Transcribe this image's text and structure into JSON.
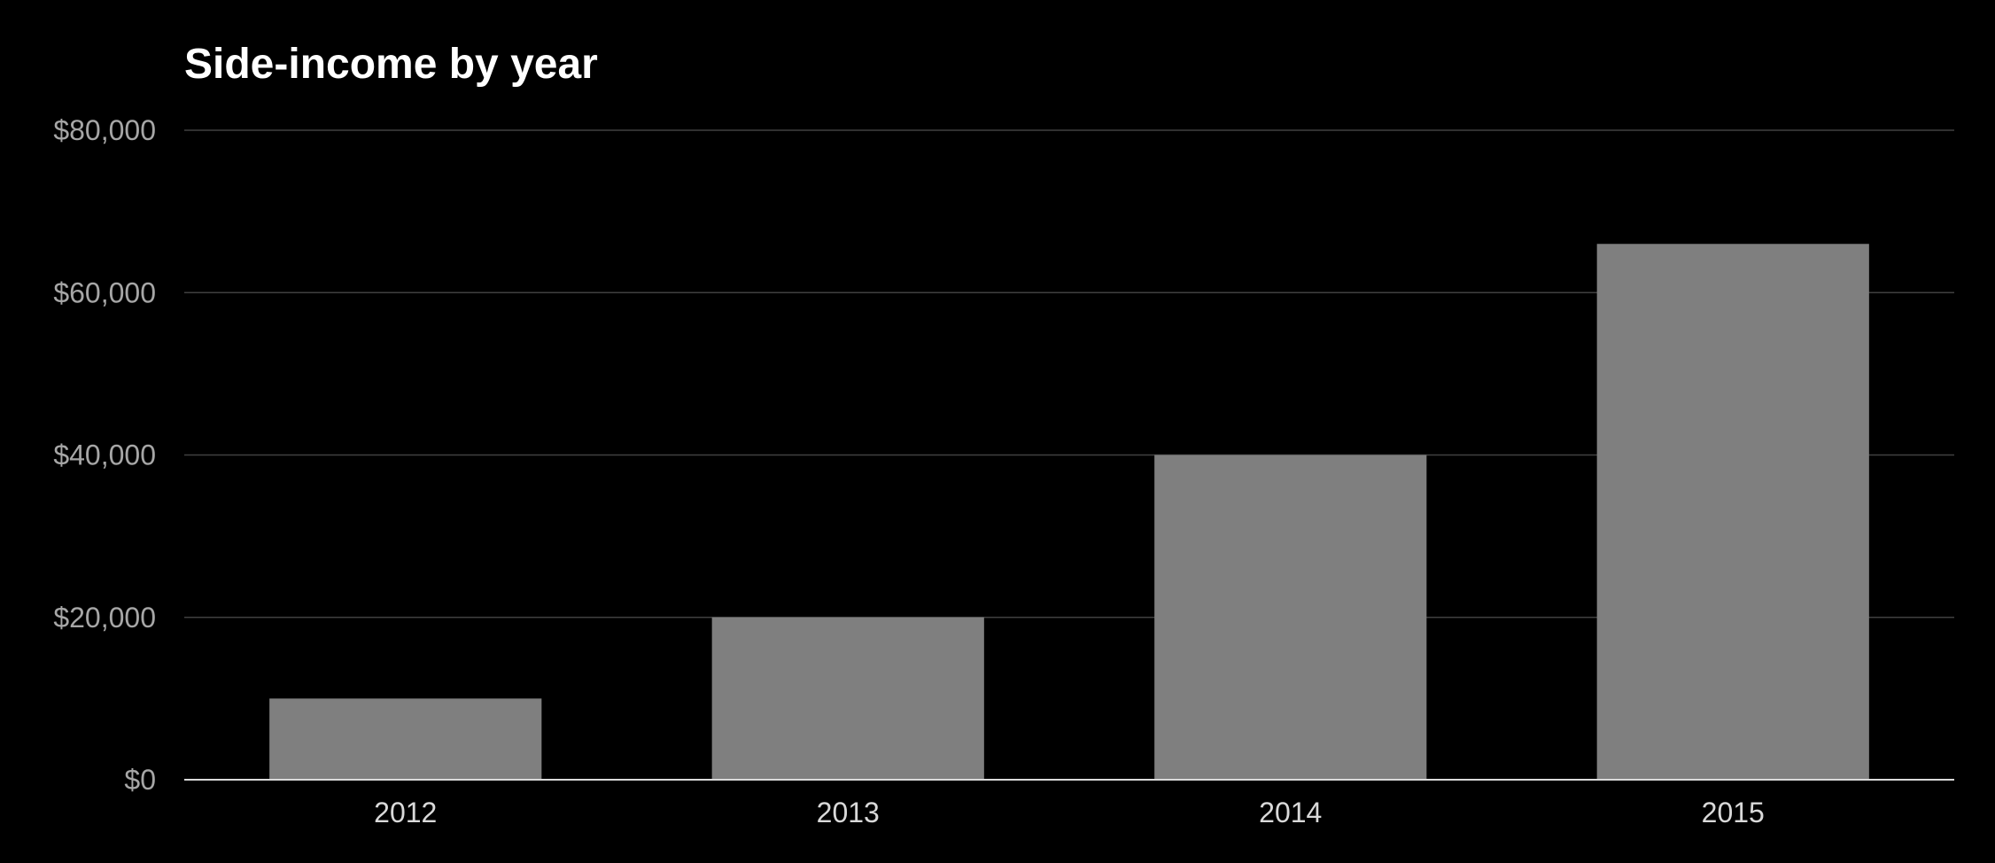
{
  "chart_data": {
    "type": "bar",
    "title": "Side-income by year",
    "xlabel": "",
    "ylabel": "",
    "categories": [
      "2012",
      "2013",
      "2014",
      "2015"
    ],
    "values": [
      10000,
      20000,
      40000,
      66000
    ],
    "ylim": [
      0,
      80000
    ],
    "y_ticks": [
      0,
      20000,
      40000,
      60000,
      80000
    ],
    "y_tick_labels": [
      "$0",
      "$20,000",
      "$40,000",
      "$60,000",
      "$80,000"
    ],
    "grid": true,
    "legend": "none",
    "colors": {
      "background": "#000000",
      "bar": "#7f7f7f",
      "gridline": "#404040",
      "axis": "#d9d9d9",
      "title": "#ffffff",
      "y_tick_text": "#a6a6a6",
      "x_tick_text": "#d9d9d9"
    }
  }
}
